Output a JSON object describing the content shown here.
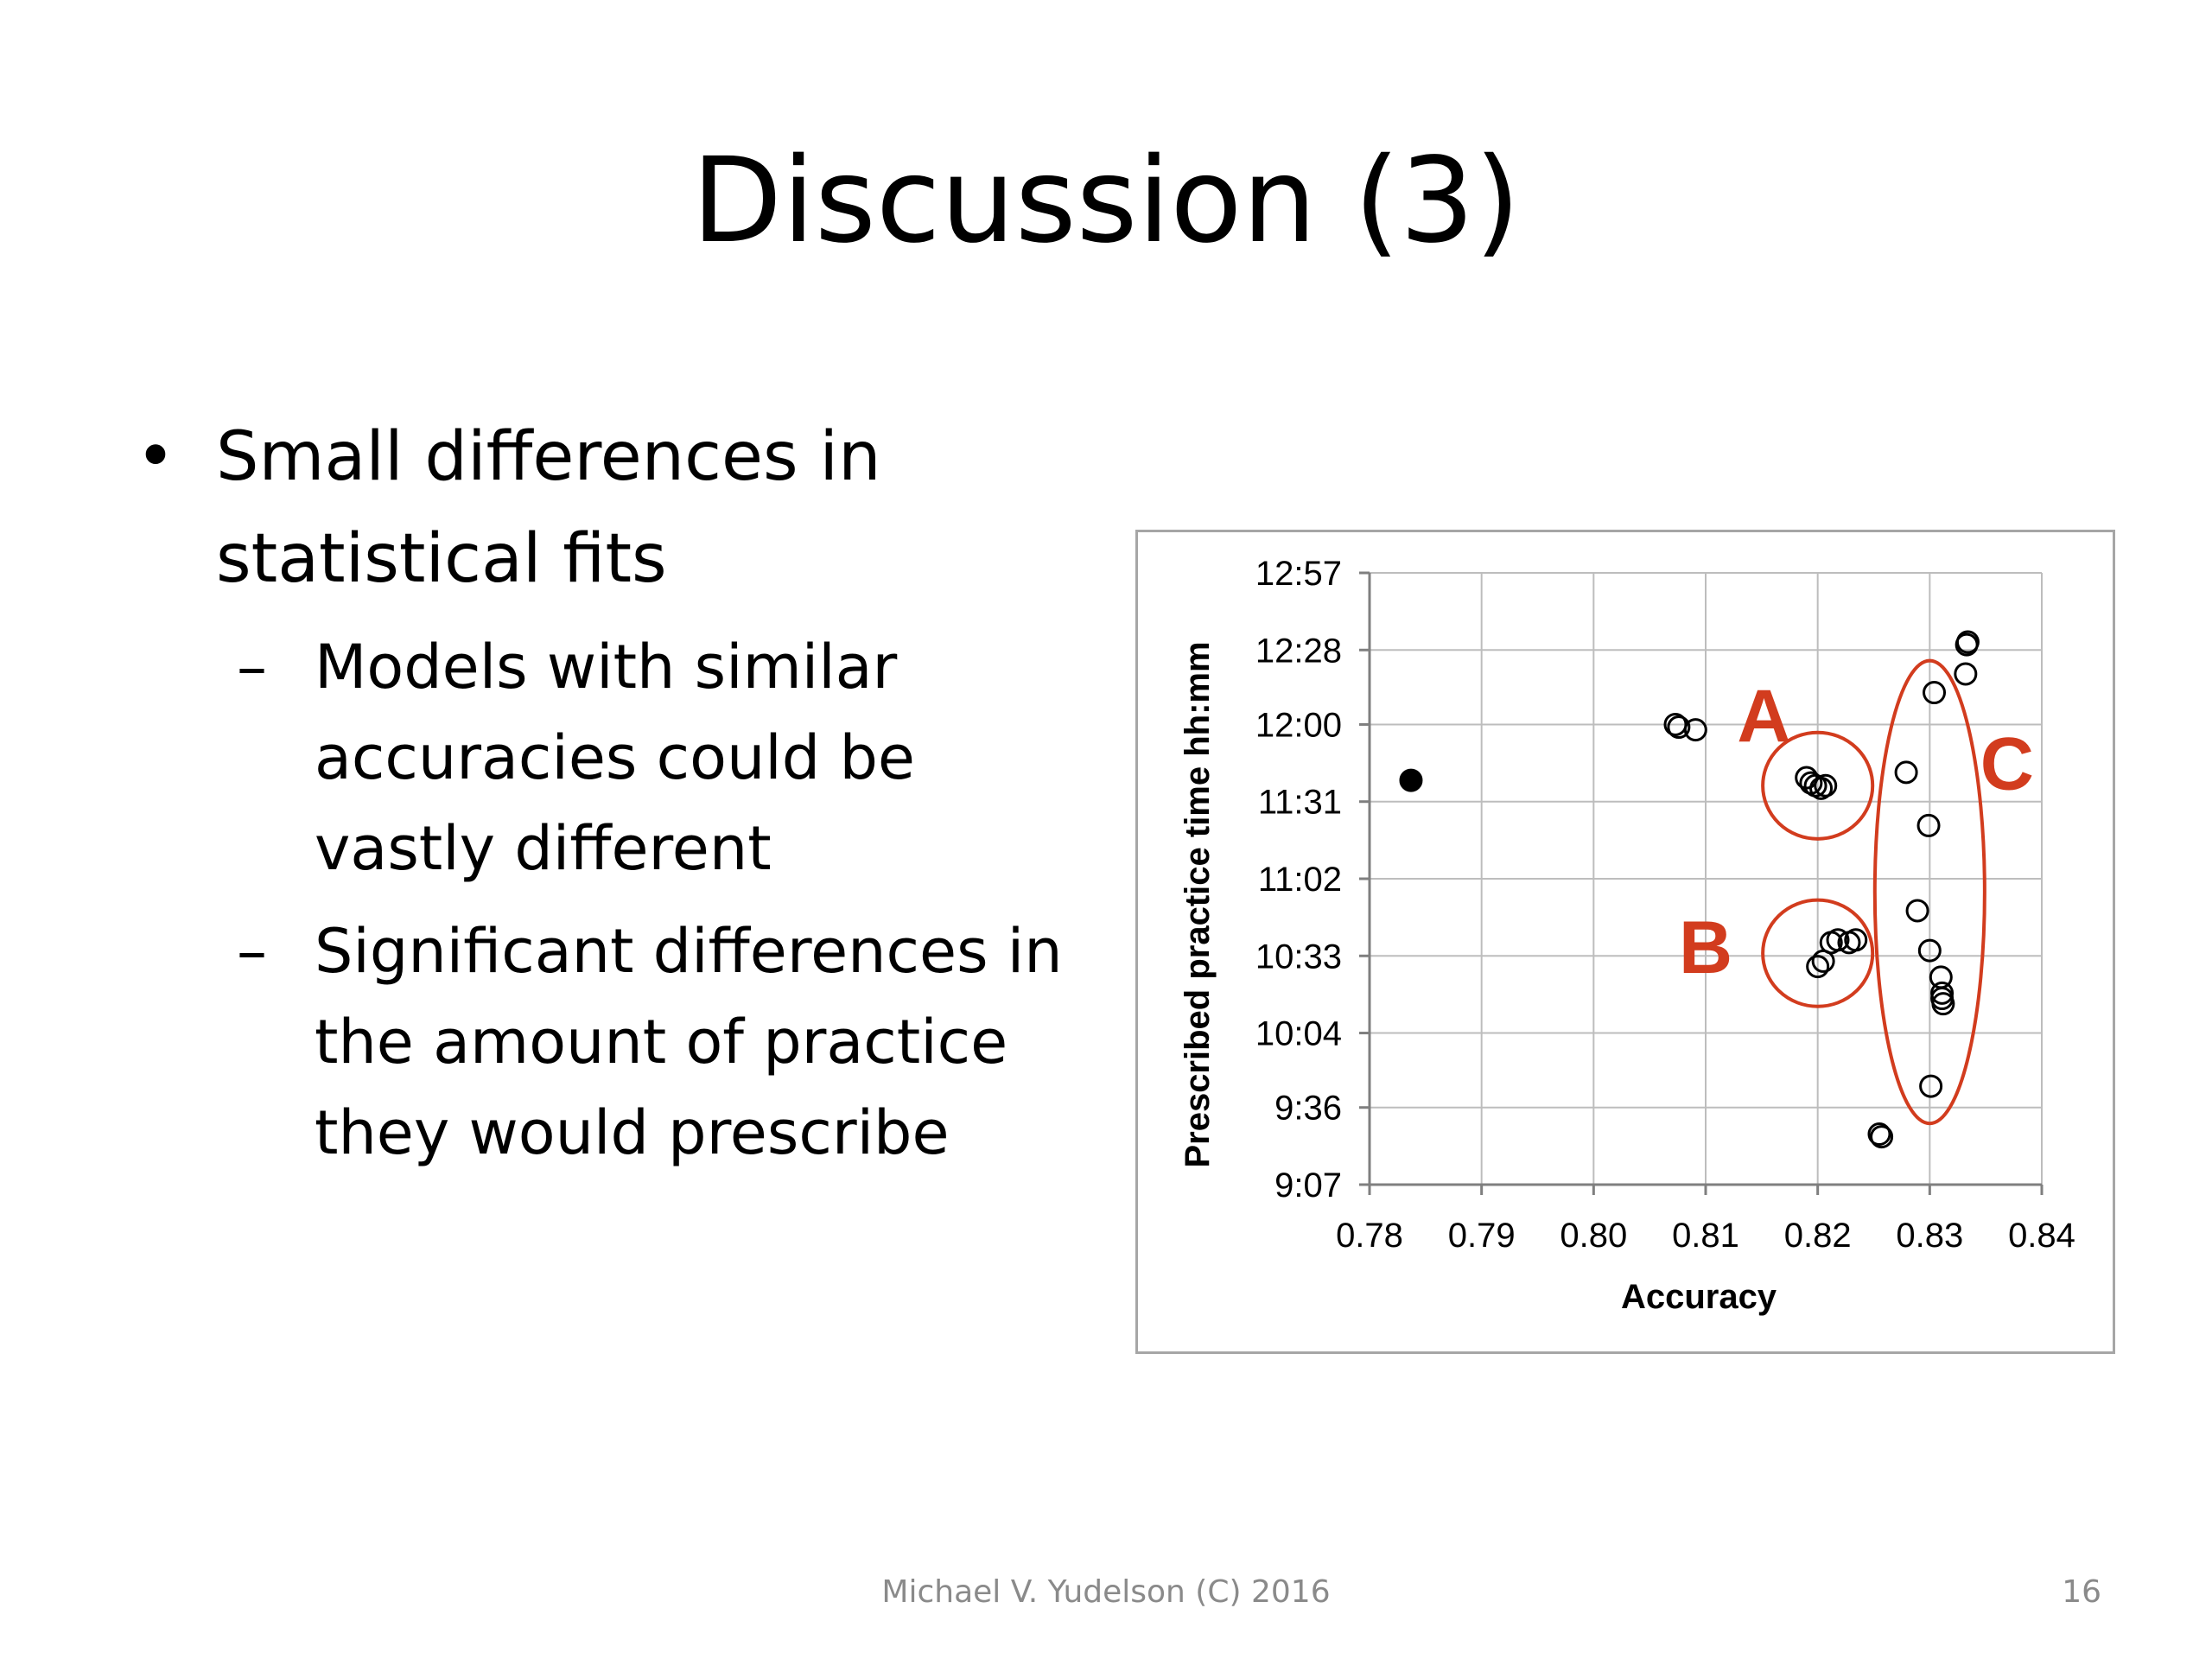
{
  "slide": {
    "title": "Discussion (3)",
    "footer": "Michael V. Yudelson (C) 2016",
    "page_number": "16"
  },
  "bullets": {
    "main": {
      "marker": "•",
      "text_line1": "Small differences in",
      "text_line2": "statistical fits"
    },
    "sub": [
      {
        "marker": "–",
        "lines": [
          "Models with similar",
          "accuracies could be",
          "vastly different"
        ]
      },
      {
        "marker": "–",
        "lines": [
          "Significant differences in",
          "the amount of practice",
          "they would prescribe"
        ]
      }
    ]
  },
  "chart_data": {
    "type": "scatter",
    "xlabel": "Accuracy",
    "ylabel": "Prescribed practice time hh:mm",
    "xlim": [
      0.78,
      0.84
    ],
    "x_ticks": [
      0.78,
      0.79,
      0.8,
      0.81,
      0.82,
      0.83,
      0.84
    ],
    "x_tick_labels": [
      "0.78",
      "0.79",
      "0.80",
      "0.81",
      "0.82",
      "0.83",
      "0.84"
    ],
    "y_tick_labels": [
      "9:07",
      "9:36",
      "10:04",
      "10:33",
      "11:02",
      "11:31",
      "12:00",
      "12:28",
      "12:57"
    ],
    "y_ticks_minutes": [
      547,
      576,
      604,
      633,
      662,
      691,
      720,
      748,
      777
    ],
    "ylim_minutes": [
      547,
      777
    ],
    "grid": true,
    "marker_color": "#000000",
    "annotation_color": "#d23c1e",
    "points": [
      {
        "x": 0.7837,
        "y_minutes": 699,
        "filled": true
      },
      {
        "x": 0.8073,
        "y_minutes": 720,
        "filled": false
      },
      {
        "x": 0.8076,
        "y_minutes": 719,
        "filled": false
      },
      {
        "x": 0.8091,
        "y_minutes": 718,
        "filled": false
      },
      {
        "x": 0.819,
        "y_minutes": 700,
        "filled": false
      },
      {
        "x": 0.8194,
        "y_minutes": 698,
        "filled": false
      },
      {
        "x": 0.8198,
        "y_minutes": 697,
        "filled": false
      },
      {
        "x": 0.8203,
        "y_minutes": 696,
        "filled": false
      },
      {
        "x": 0.8207,
        "y_minutes": 697,
        "filled": false
      },
      {
        "x": 0.82,
        "y_minutes": 629,
        "filled": false
      },
      {
        "x": 0.8205,
        "y_minutes": 631,
        "filled": false
      },
      {
        "x": 0.8212,
        "y_minutes": 638,
        "filled": false
      },
      {
        "x": 0.8218,
        "y_minutes": 639,
        "filled": false
      },
      {
        "x": 0.8228,
        "y_minutes": 638,
        "filled": false
      },
      {
        "x": 0.8234,
        "y_minutes": 639,
        "filled": false
      },
      {
        "x": 0.8255,
        "y_minutes": 566,
        "filled": false
      },
      {
        "x": 0.8257,
        "y_minutes": 565,
        "filled": false
      },
      {
        "x": 0.8279,
        "y_minutes": 702,
        "filled": false
      },
      {
        "x": 0.8289,
        "y_minutes": 650,
        "filled": false
      },
      {
        "x": 0.8299,
        "y_minutes": 682,
        "filled": false
      },
      {
        "x": 0.83,
        "y_minutes": 635,
        "filled": false
      },
      {
        "x": 0.8301,
        "y_minutes": 584,
        "filled": false
      },
      {
        "x": 0.8304,
        "y_minutes": 732,
        "filled": false
      },
      {
        "x": 0.831,
        "y_minutes": 625,
        "filled": false
      },
      {
        "x": 0.8311,
        "y_minutes": 619,
        "filled": false
      },
      {
        "x": 0.8311,
        "y_minutes": 617,
        "filled": false
      },
      {
        "x": 0.8312,
        "y_minutes": 615,
        "filled": false
      },
      {
        "x": 0.8332,
        "y_minutes": 739,
        "filled": false
      },
      {
        "x": 0.8333,
        "y_minutes": 750,
        "filled": false
      },
      {
        "x": 0.8334,
        "y_minutes": 751,
        "filled": false
      }
    ],
    "annotations": [
      {
        "label": "A",
        "cx": 0.82,
        "cy_minutes": 697,
        "rx_units": 0.0049,
        "ry_minutes": 20,
        "label_x": 0.8152,
        "label_y_minutes": 724
      },
      {
        "label": "B",
        "cx": 0.82,
        "cy_minutes": 634,
        "rx_units": 0.0049,
        "ry_minutes": 20,
        "label_x": 0.81,
        "label_y_minutes": 637
      },
      {
        "label": "C",
        "cx": 0.83,
        "cy_minutes": 657,
        "rx_units": 0.0049,
        "ry_minutes": 87,
        "label_x": 0.8369,
        "label_y_minutes": 706
      }
    ]
  }
}
